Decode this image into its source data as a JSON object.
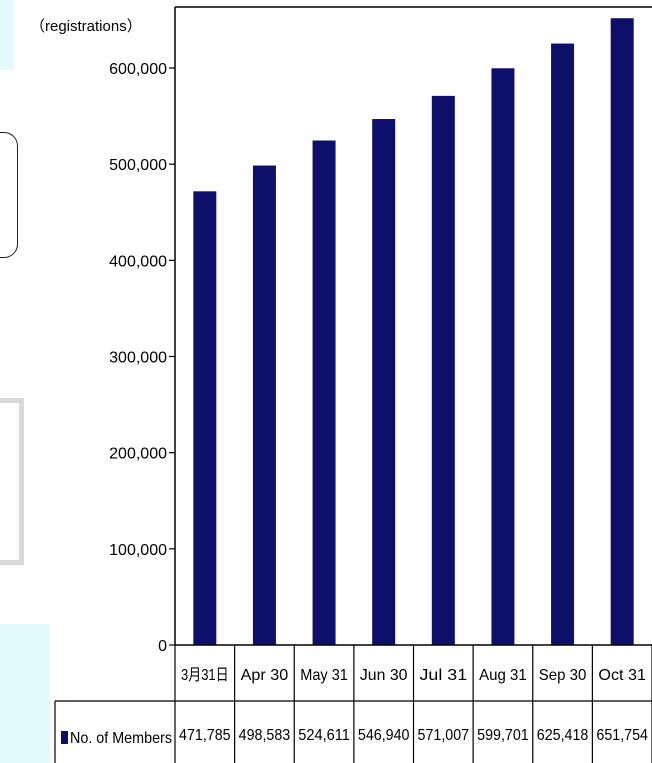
{
  "chart_data": {
    "type": "bar",
    "unit_label": "（registrations）",
    "categories": [
      "3月31日",
      "Apr 30",
      "May 31",
      "Jun 30",
      "Jul 31",
      "Aug 31",
      "Sep 30",
      "Oct 31"
    ],
    "series": [
      {
        "name": "No. of Members",
        "values": [
          471785,
          498583,
          524611,
          546940,
          571007,
          599701,
          625418,
          651754
        ],
        "value_labels": [
          "471,785",
          "498,583",
          "524,611",
          "546,940",
          "571,007",
          "599,701",
          "625,418",
          "651,754"
        ],
        "color": "#0e0e6b"
      }
    ],
    "yticks": [
      {
        "value": 0,
        "label": "0"
      },
      {
        "value": 100000,
        "label": "100,000"
      },
      {
        "value": 200000,
        "label": "200,000"
      },
      {
        "value": 300000,
        "label": "300,000"
      },
      {
        "value": 400000,
        "label": "400,000"
      },
      {
        "value": 500000,
        "label": "500,000"
      },
      {
        "value": 600000,
        "label": "600,000"
      }
    ],
    "ylim": [
      0,
      680000
    ],
    "grid": false,
    "legend": "in data table",
    "data_table": true
  },
  "colors": {
    "bar": "#0e0e6b",
    "panel": "#e3fbfd",
    "gray_border": "#d9d9d9"
  }
}
